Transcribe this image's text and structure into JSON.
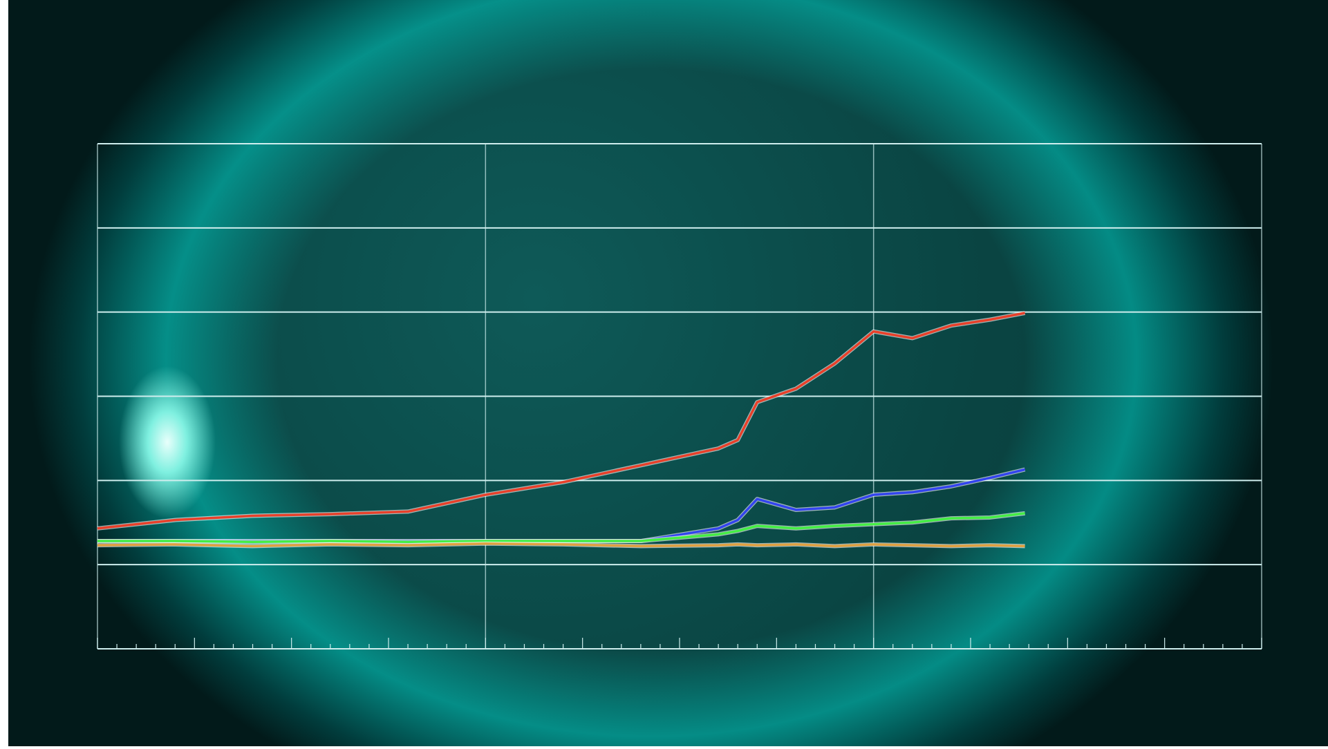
{
  "chart_data": {
    "type": "line",
    "x": [
      0,
      0.2,
      0.4,
      0.6,
      0.8,
      1.0,
      1.2,
      1.4,
      1.6,
      1.65,
      1.7,
      1.8,
      1.9,
      2.0,
      2.1,
      2.2,
      2.3,
      2.39
    ],
    "series": [
      {
        "color": "#e8402a",
        "values": [
          1.43,
          1.53,
          1.58,
          1.6,
          1.63,
          1.83,
          1.98,
          2.18,
          2.38,
          2.48,
          2.93,
          3.09,
          3.39,
          3.77,
          3.69,
          3.84,
          3.91,
          3.99
        ]
      },
      {
        "color": "#3344ee",
        "values": [
          1.28,
          1.28,
          1.28,
          1.28,
          1.28,
          1.28,
          1.28,
          1.28,
          1.43,
          1.53,
          1.78,
          1.65,
          1.68,
          1.83,
          1.86,
          1.93,
          2.03,
          2.13
        ]
      },
      {
        "color": "#44ee44",
        "values": [
          1.28,
          1.28,
          1.27,
          1.28,
          1.27,
          1.28,
          1.28,
          1.28,
          1.36,
          1.4,
          1.46,
          1.43,
          1.46,
          1.48,
          1.5,
          1.55,
          1.56,
          1.61
        ]
      },
      {
        "color": "#e0a040",
        "values": [
          1.23,
          1.24,
          1.22,
          1.24,
          1.23,
          1.25,
          1.24,
          1.22,
          1.23,
          1.24,
          1.23,
          1.24,
          1.22,
          1.24,
          1.23,
          1.22,
          1.23,
          1.22
        ]
      }
    ],
    "xlim": [
      0,
      3
    ],
    "xticks": [
      0,
      1,
      2,
      3
    ],
    "ylim": [
      0,
      6
    ],
    "yticks": [
      0,
      1,
      2,
      3,
      4,
      5,
      6
    ],
    "grid": true
  }
}
